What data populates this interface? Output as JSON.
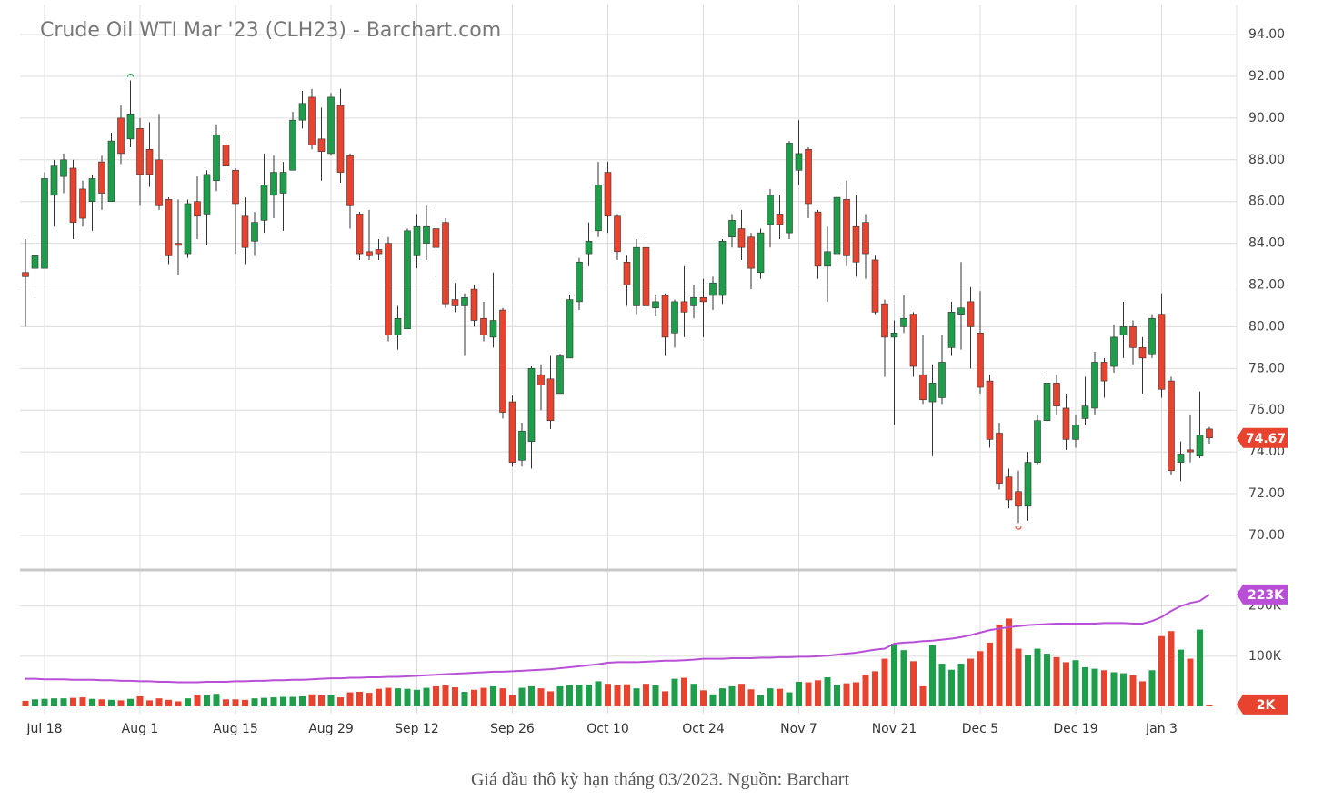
{
  "caption": "Giá dầu thô kỳ hạn tháng 03/2023. Nguồn: Barchart",
  "chart_data": {
    "type": "candlestick",
    "title": "Crude Oil WTI Mar '23 (CLH23) - Barchart.com",
    "categories": [
      null,
      null,
      "Jul 18",
      null,
      null,
      null,
      null,
      null,
      null,
      null,
      null,
      null,
      "Aug 1",
      null,
      null,
      null,
      null,
      null,
      null,
      null,
      null,
      null,
      "Aug 15",
      null,
      null,
      null,
      null,
      null,
      null,
      null,
      null,
      null,
      "Aug 29",
      null,
      null,
      null,
      null,
      null,
      null,
      null,
      null,
      "Sep 12",
      null,
      null,
      null,
      null,
      null,
      null,
      null,
      null,
      null,
      "Sep 26",
      null,
      null,
      null,
      null,
      null,
      null,
      null,
      null,
      null,
      "Oct 10",
      null,
      null,
      null,
      null,
      null,
      null,
      null,
      null,
      null,
      "Oct 24",
      null,
      null,
      null,
      null,
      null,
      null,
      null,
      null,
      null,
      "Nov 7",
      null,
      null,
      null,
      null,
      null,
      null,
      null,
      null,
      null,
      "Nov 21",
      null,
      null,
      null,
      null,
      null,
      null,
      null,
      null,
      "Dec 5",
      null,
      null,
      null,
      null,
      null,
      null,
      null,
      null,
      null,
      "Dec 19",
      null,
      null,
      null,
      null,
      null,
      null,
      null,
      null,
      "Jan 3",
      null,
      null,
      null,
      null,
      null
    ],
    "open": [
      82.6,
      82.8,
      82.8,
      86.3,
      87.2,
      87.6,
      86.6,
      86,
      87.9,
      86,
      90,
      89,
      89.5,
      88.5,
      88,
      86.1,
      84,
      83.5,
      86,
      85.4,
      87,
      88.7,
      87.5,
      85.3,
      84.1,
      85.1,
      86.3,
      86.4,
      87.5,
      89.9,
      91,
      89,
      88.3,
      90.6,
      88.2,
      85.4,
      83.6,
      83.7,
      84,
      79.6,
      79.9,
      83.4,
      84,
      84.7,
      85,
      81.3,
      81,
      81.8,
      80.4,
      79.5,
      80.8,
      76.4,
      73.6,
      74.5,
      77.7,
      77.5,
      76.8,
      78.5,
      81.2,
      83.5,
      84.6,
      87.4,
      85.3,
      83.1,
      81,
      83.8,
      80.9,
      81.5,
      79.7,
      81.2,
      81,
      81.4,
      81.5,
      81.5,
      84.3,
      84.7,
      84.3,
      82.6,
      84.9,
      85.4,
      84.5,
      87.5,
      88.5,
      85.5,
      82.9,
      83.5,
      86.1,
      84.8,
      85,
      83.2,
      81.1,
      79.5,
      80,
      80.6,
      77.7,
      76.4,
      76.6,
      79,
      80.6,
      81.2,
      79.7,
      77.4,
      74.9,
      72.8,
      72.1,
      71.4,
      73.5,
      75.5,
      77.3,
      76.1,
      74.6,
      75.6,
      76.1,
      78.3,
      78.1,
      79.6,
      80,
      79,
      78.7,
      80.6,
      77.4,
      73.5,
      74.1,
      73.8,
      75.1
    ],
    "high": [
      84.2,
      84.4,
      87.4,
      88,
      88.3,
      88,
      87,
      87.3,
      88.2,
      89.3,
      90.6,
      91.8,
      90,
      89.8,
      90.2,
      86.2,
      86.1,
      86.1,
      87.2,
      87.5,
      89.7,
      89.1,
      87.6,
      86.2,
      85.5,
      88.3,
      88.2,
      87.9,
      90.3,
      91.3,
      91.4,
      90.5,
      91.2,
      91.4,
      88.3,
      85.5,
      85.6,
      84.2,
      84.3,
      81,
      84.7,
      85.4,
      85.8,
      85.8,
      85.2,
      82.1,
      81.6,
      82,
      81.2,
      82.6,
      80.9,
      76.7,
      75.4,
      78.1,
      78.2,
      78.6,
      78.7,
      81.5,
      83.3,
      85,
      87.9,
      87.9,
      85.4,
      83.4,
      84.2,
      84.2,
      81.5,
      81.6,
      81.3,
      82.9,
      82,
      82.3,
      82.4,
      84.2,
      85.4,
      85.6,
      84.5,
      84.7,
      86.6,
      86.3,
      88.9,
      89.9,
      88.6,
      85.6,
      84.8,
      86.7,
      87,
      86.3,
      85.4,
      83.4,
      81.3,
      80.3,
      81.5,
      80.7,
      79.6,
      78.2,
      79.6,
      81.2,
      83.1,
      81.9,
      81.7,
      77.7,
      75.4,
      73.2,
      73.1,
      74,
      75.8,
      77.8,
      77.7,
      76.8,
      75.8,
      77.6,
      78.8,
      78.5,
      80.1,
      81.2,
      80.3,
      79.5,
      80.6,
      81.6,
      77.6,
      74.5,
      75.8,
      76.9,
      75.2
    ],
    "low": [
      80,
      81.6,
      82.8,
      84.8,
      86.4,
      84.2,
      84.8,
      84.6,
      85.6,
      86,
      87.8,
      88.6,
      85.8,
      86.7,
      85.6,
      83,
      82.5,
      83.3,
      84.2,
      83.9,
      86.5,
      86.5,
      83.5,
      83,
      83.4,
      84.5,
      85.2,
      84.6,
      87.5,
      89.5,
      88.5,
      87,
      88.2,
      86.9,
      84.7,
      83.2,
      83.2,
      83.2,
      79.3,
      78.9,
      79.9,
      82.8,
      83.2,
      82.4,
      80.9,
      80.7,
      78.6,
      80,
      79.3,
      79,
      75.6,
      73.3,
      73.3,
      73.2,
      76,
      75.1,
      76.8,
      78.5,
      80.8,
      82.9,
      84.3,
      84.5,
      83.2,
      81,
      80.6,
      80.7,
      80.5,
      78.6,
      79,
      79.5,
      80.4,
      79.5,
      80.8,
      81.1,
      83.8,
      83.2,
      81.8,
      82.3,
      83.8,
      84.2,
      84.2,
      86.8,
      85.2,
      82.3,
      81.2,
      83.2,
      82.9,
      82.4,
      82.3,
      80.6,
      77.6,
      75.3,
      79.7,
      77.6,
      76.3,
      73.8,
      76.3,
      78.6,
      78.9,
      78,
      76.8,
      74.2,
      72.2,
      71.3,
      70.6,
      70.7,
      73.4,
      75.2,
      75.8,
      74.1,
      74.2,
      75.3,
      75.8,
      76.6,
      77.8,
      78.5,
      78.2,
      76.8,
      78.5,
      76.6,
      72.9,
      72.6,
      73.5,
      73.7,
      74.4
    ],
    "close": [
      82.4,
      83.4,
      87.1,
      87.7,
      88,
      85,
      85.2,
      87.1,
      86.4,
      88.9,
      88.3,
      90.2,
      87.3,
      87.3,
      85.8,
      83.4,
      83.9,
      85.9,
      85.3,
      87.3,
      89.2,
      87.7,
      85.9,
      83.8,
      85,
      86.8,
      87.4,
      87.4,
      89.9,
      90.7,
      88.7,
      88.4,
      91,
      87.4,
      85.8,
      83.5,
      83.4,
      83.5,
      79.6,
      80.4,
      84.6,
      84.8,
      84.8,
      83.8,
      81.1,
      81,
      81.4,
      80.3,
      79.6,
      80.3,
      75.9,
      73.5,
      75,
      78,
      77.2,
      75.5,
      78.6,
      81.3,
      83.1,
      84.1,
      86.8,
      85.3,
      83.6,
      82,
      83.8,
      81,
      81.2,
      79.5,
      81.2,
      80.7,
      81.4,
      81.2,
      82.1,
      84.1,
      85.1,
      83.8,
      82.8,
      84.5,
      86.3,
      84.9,
      88.8,
      88.3,
      85.9,
      82.9,
      83.6,
      86.2,
      83.4,
      83.1,
      83.5,
      80.7,
      79.5,
      79.7,
      80.4,
      78.1,
      76.5,
      77.3,
      78.3,
      80.7,
      80.9,
      80,
      77.1,
      74.6,
      72.5,
      71.7,
      71.4,
      73.5,
      75.5,
      77.3,
      76.2,
      74.6,
      75.3,
      76.2,
      78.3,
      77.4,
      79.5,
      80,
      79,
      78.5,
      80.4,
      77,
      73.1,
      73.9,
      74,
      74.8,
      74.67
    ],
    "up_color": "#1e9e4a",
    "down_color": "#e8432e",
    "ylim": [
      68.43,
      95.44
    ],
    "yticks": [
      {
        "value": 70,
        "label": "70.00"
      },
      {
        "value": 72,
        "label": "72.00"
      },
      {
        "value": 74,
        "label": "74.00"
      },
      {
        "value": 76,
        "label": "76.00"
      },
      {
        "value": 78,
        "label": "78.00"
      },
      {
        "value": 80,
        "label": "80.00"
      },
      {
        "value": 82,
        "label": "82.00"
      },
      {
        "value": 84,
        "label": "84.00"
      },
      {
        "value": 86,
        "label": "86.00"
      },
      {
        "value": 88,
        "label": "88.00"
      },
      {
        "value": 90,
        "label": "90.00"
      },
      {
        "value": 92,
        "label": "92.00"
      },
      {
        "value": 94,
        "label": "94.00"
      }
    ],
    "grid": true,
    "volume": {
      "values": [
        11,
        14,
        15,
        16,
        16,
        17,
        18,
        15,
        14,
        13,
        12,
        15,
        20,
        12,
        16,
        13,
        10,
        16,
        23,
        22,
        25,
        14,
        14,
        13,
        16,
        17,
        18,
        19,
        19,
        20,
        24,
        22,
        22,
        18,
        28,
        29,
        27,
        35,
        37,
        36,
        35,
        33,
        37,
        40,
        42,
        38,
        29,
        33,
        37,
        40,
        36,
        22,
        37,
        40,
        36,
        30,
        40,
        42,
        43,
        43,
        50,
        45,
        42,
        44,
        36,
        45,
        42,
        30,
        55,
        57,
        45,
        32,
        24,
        36,
        40,
        45,
        34,
        22,
        36,
        35,
        28,
        49,
        48,
        52,
        58,
        43,
        46,
        48,
        63,
        70,
        95,
        125,
        112,
        90,
        40,
        122,
        85,
        73,
        85,
        95,
        110,
        127,
        163,
        175,
        115,
        103,
        115,
        105,
        98,
        88,
        92,
        78,
        75,
        72,
        68,
        66,
        62,
        50,
        72,
        140,
        150,
        113,
        95,
        153,
        2
      ],
      "last_label": "2K",
      "ylim": [
        0,
        270
      ],
      "yticks": [
        {
          "value": 100,
          "label": "100K"
        },
        {
          "value": 200,
          "label": "200K"
        }
      ],
      "average": {
        "color": "#b84fd6",
        "last_label": "223K",
        "values": [
          55,
          55,
          54,
          54,
          54,
          53,
          53,
          53,
          52,
          52,
          51,
          51,
          50,
          50,
          49,
          49,
          48,
          48,
          48,
          49,
          49,
          49,
          50,
          50,
          51,
          51,
          52,
          52,
          53,
          53,
          54,
          55,
          56,
          56,
          57,
          57,
          58,
          58,
          59,
          59,
          60,
          61,
          62,
          63,
          64,
          65,
          66,
          67,
          68,
          69,
          69,
          70,
          71,
          72,
          73,
          74,
          76,
          78,
          80,
          82,
          84,
          87,
          88,
          88,
          88,
          89,
          90,
          91,
          91,
          92,
          93,
          95,
          95,
          95,
          96,
          96,
          96,
          97,
          97,
          98,
          98,
          99,
          99,
          100,
          101,
          103,
          105,
          107,
          110,
          113,
          115,
          125,
          127,
          128,
          130,
          131,
          133,
          135,
          138,
          142,
          147,
          152,
          155,
          158,
          160,
          162,
          163,
          164,
          165,
          165,
          165,
          165,
          165,
          166,
          166,
          166,
          165,
          165,
          170,
          178,
          190,
          200,
          206,
          210,
          223
        ]
      }
    }
  }
}
